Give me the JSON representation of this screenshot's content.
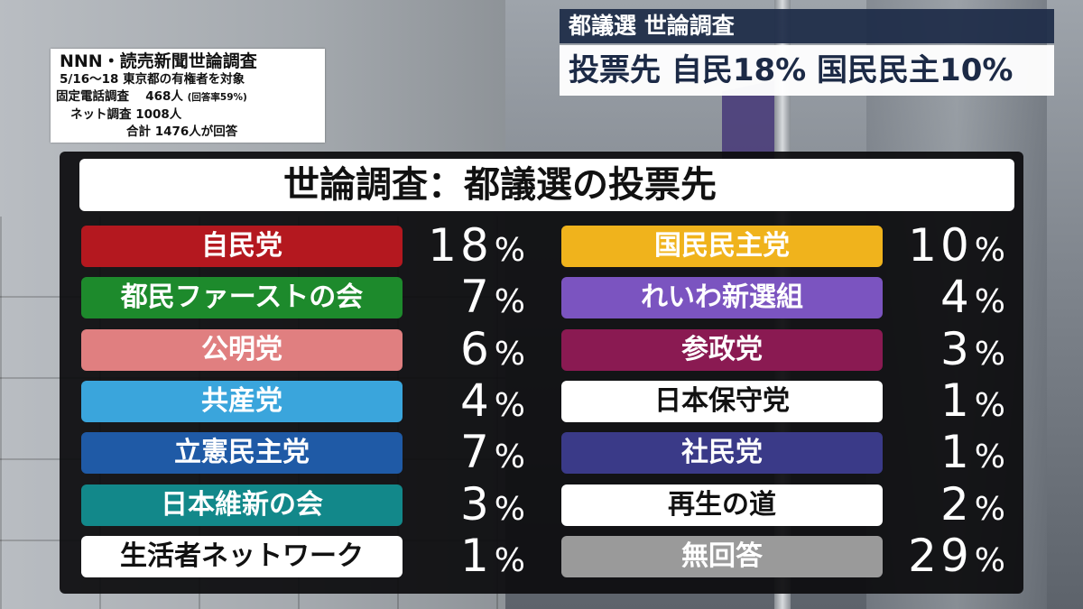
{
  "info_box": {
    "line1": "NNN・読売新聞世論調査",
    "line2": "5/16〜18  東京都の有権者を対象",
    "line3_main": "固定電話調査　 468人",
    "line3_small": "(回答率59%)",
    "line4": "ネット調査 1008人",
    "line5": "合計 1476人が回答"
  },
  "headline": {
    "topic": "都議選 世論調査",
    "main": "投票先 自民18% 国民民主10%"
  },
  "chart_data": {
    "type": "table",
    "title": "世論調査：都議選の投票先",
    "unit": "%",
    "left_column": [
      {
        "party": "自民党",
        "value": 18,
        "color": "#b4181f",
        "text_color": "#ffffff"
      },
      {
        "party": "都民ファーストの会",
        "value": 7,
        "color": "#1d8a2c",
        "text_color": "#ffffff"
      },
      {
        "party": "公明党",
        "value": 6,
        "color": "#e07f80",
        "text_color": "#ffffff"
      },
      {
        "party": "共産党",
        "value": 4,
        "color": "#3aa5dc",
        "text_color": "#ffffff"
      },
      {
        "party": "立憲民主党",
        "value": 7,
        "color": "#1f5aa6",
        "text_color": "#ffffff"
      },
      {
        "party": "日本維新の会",
        "value": 3,
        "color": "#12888a",
        "text_color": "#ffffff"
      },
      {
        "party": "生活者ネットワーク",
        "value": 1,
        "color": "#ffffff",
        "text_color": "#111111"
      }
    ],
    "right_column": [
      {
        "party": "国民民主党",
        "value": 10,
        "color": "#f0b31c",
        "text_color": "#ffffff"
      },
      {
        "party": "れいわ新選組",
        "value": 4,
        "color": "#7b54c0",
        "text_color": "#ffffff"
      },
      {
        "party": "参政党",
        "value": 3,
        "color": "#8a1a52",
        "text_color": "#ffffff"
      },
      {
        "party": "日本保守党",
        "value": 1,
        "color": "#ffffff",
        "text_color": "#111111"
      },
      {
        "party": "社民党",
        "value": 1,
        "color": "#3a3a88",
        "text_color": "#ffffff"
      },
      {
        "party": "再生の道",
        "value": 2,
        "color": "#ffffff",
        "text_color": "#111111"
      },
      {
        "party": "無回答",
        "value": 29,
        "color": "#9a9a9a",
        "text_color": "#ffffff"
      }
    ]
  }
}
